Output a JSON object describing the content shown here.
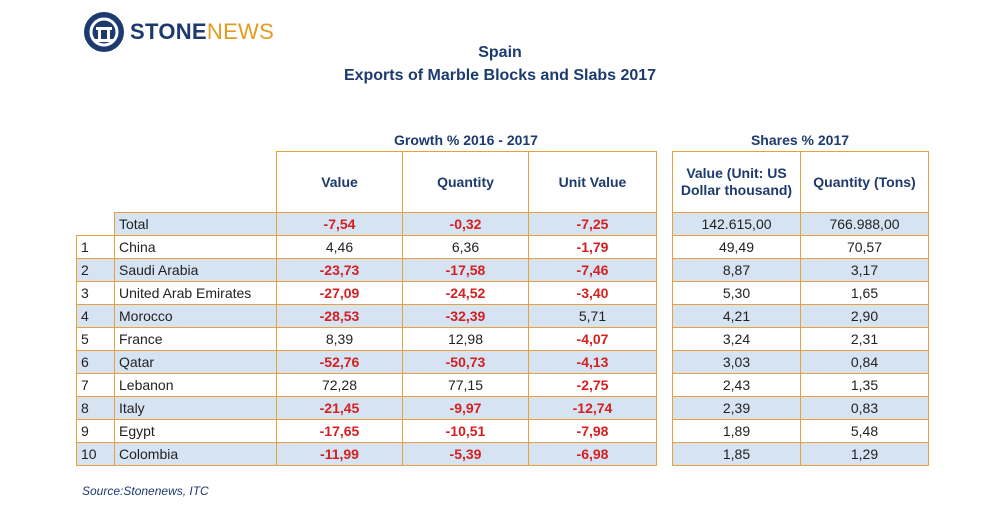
{
  "brand": {
    "name_part1": "STONE",
    "name_part2": "NEWS"
  },
  "chart_data": {
    "type": "table",
    "title": "Spain",
    "subtitle": "Exports of Marble Blocks and Slabs 2017",
    "group_headers": {
      "growth": "Growth % 2016 - 2017",
      "shares": "Shares % 2017"
    },
    "columns": {
      "value": "Value",
      "quantity": "Quantity",
      "unit_value": "Unit Value",
      "share_value": "Value (Unit: US Dollar thousand)",
      "share_quantity": "Quantity (Tons)"
    },
    "total": {
      "label": "Total",
      "value": "-7,54",
      "quantity": "-0,32",
      "unit_value": "-7,25",
      "share_value": "142.615,00",
      "share_quantity": "766.988,00"
    },
    "rows": [
      {
        "rank": "1",
        "country": "China",
        "value": "4,46",
        "quantity": "6,36",
        "unit_value": "-1,79",
        "share_value": "49,49",
        "share_quantity": "70,57"
      },
      {
        "rank": "2",
        "country": "Saudi Arabia",
        "value": "-23,73",
        "quantity": "-17,58",
        "unit_value": "-7,46",
        "share_value": "8,87",
        "share_quantity": "3,17"
      },
      {
        "rank": "3",
        "country": "United Arab Emirates",
        "value": "-27,09",
        "quantity": "-24,52",
        "unit_value": "-3,40",
        "share_value": "5,30",
        "share_quantity": "1,65"
      },
      {
        "rank": "4",
        "country": "Morocco",
        "value": "-28,53",
        "quantity": "-32,39",
        "unit_value": "5,71",
        "share_value": "4,21",
        "share_quantity": "2,90"
      },
      {
        "rank": "5",
        "country": "France",
        "value": "8,39",
        "quantity": "12,98",
        "unit_value": "-4,07",
        "share_value": "3,24",
        "share_quantity": "2,31"
      },
      {
        "rank": "6",
        "country": "Qatar",
        "value": "-52,76",
        "quantity": "-50,73",
        "unit_value": "-4,13",
        "share_value": "3,03",
        "share_quantity": "0,84"
      },
      {
        "rank": "7",
        "country": "Lebanon",
        "value": "72,28",
        "quantity": "77,15",
        "unit_value": "-2,75",
        "share_value": "2,43",
        "share_quantity": "1,35"
      },
      {
        "rank": "8",
        "country": "Italy",
        "value": "-21,45",
        "quantity": "-9,97",
        "unit_value": "-12,74",
        "share_value": "2,39",
        "share_quantity": "0,83"
      },
      {
        "rank": "9",
        "country": "Egypt",
        "value": "-17,65",
        "quantity": "-10,51",
        "unit_value": "-7,98",
        "share_value": "1,89",
        "share_quantity": "5,48"
      },
      {
        "rank": "10",
        "country": "Colombia",
        "value": "-11,99",
        "quantity": "-5,39",
        "unit_value": "-6,98",
        "share_value": "1,85",
        "share_quantity": "1,29"
      }
    ],
    "source": "Source:Stonenews, ITC"
  },
  "colors": {
    "navy": "#1d3a6e",
    "orange_border": "#e6a13a",
    "shade": "#d6e3f2",
    "negative": "#d42020",
    "logo_accent": "#e59c1e"
  }
}
